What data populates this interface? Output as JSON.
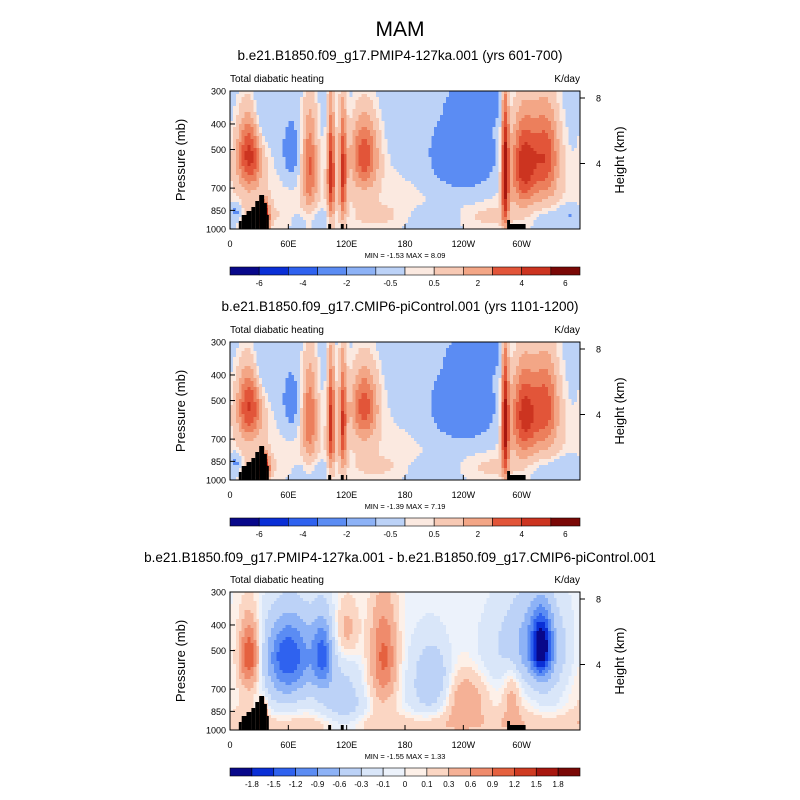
{
  "figure": {
    "title": "MAM"
  },
  "chart_data": [
    {
      "type": "heatmap",
      "title": "b.e21.B1850.f09_g17.PMIP4-127ka.001 (yrs 601-700)",
      "left_label": "Total diabatic heating",
      "right_label": "K/day",
      "ylabel": "Pressure (mb)",
      "ylabel_right": "Height (km)",
      "y_ticks": [
        "300",
        "400",
        "500",
        "700",
        "850",
        "1000"
      ],
      "y_right_ticks": [
        "8",
        "4"
      ],
      "x_ticks": [
        "0",
        "60E",
        "120E",
        "180",
        "120W",
        "60W"
      ],
      "stats": "MIN =  -1.53   MAX =   8.09",
      "colorbar_labels": [
        "-6",
        "-4",
        "-2",
        "-0.5",
        "0.5",
        "2",
        "4",
        "6"
      ],
      "colorbar_levels": 12,
      "field": "control",
      "scale": 1.05
    },
    {
      "type": "heatmap",
      "title": "b.e21.B1850.f09_g17.CMIP6-piControl.001 (yrs 1101-1200)",
      "left_label": "Total diabatic heating",
      "right_label": "K/day",
      "ylabel": "Pressure (mb)",
      "ylabel_right": "Height (km)",
      "y_ticks": [
        "300",
        "400",
        "500",
        "700",
        "850",
        "1000"
      ],
      "y_right_ticks": [
        "8",
        "4"
      ],
      "x_ticks": [
        "0",
        "60E",
        "120E",
        "180",
        "120W",
        "60W"
      ],
      "stats": "MIN =  -1.39   MAX =   7.19",
      "colorbar_labels": [
        "-6",
        "-4",
        "-2",
        "-0.5",
        "0.5",
        "2",
        "4",
        "6"
      ],
      "colorbar_levels": 12,
      "field": "control",
      "scale": 1.0
    },
    {
      "type": "heatmap",
      "title": "b.e21.B1850.f09_g17.PMIP4-127ka.001 - b.e21.B1850.f09_g17.CMIP6-piControl.001",
      "left_label": "Total diabatic heating",
      "right_label": "K/day",
      "ylabel": "Pressure (mb)",
      "ylabel_right": "Height (km)",
      "y_ticks": [
        "300",
        "400",
        "500",
        "700",
        "850",
        "1000"
      ],
      "y_right_ticks": [
        "8",
        "4"
      ],
      "x_ticks": [
        "0",
        "60E",
        "120E",
        "180",
        "120W",
        "60W"
      ],
      "stats": "MIN =  -1.55   MAX =   1.33",
      "colorbar_labels": [
        "-1.8",
        "-1.5",
        "-1.2",
        "-0.9",
        "-0.6",
        "-0.3",
        "-0.1",
        "0",
        "0.1",
        "0.3",
        "0.6",
        "0.9",
        "1.2",
        "1.5",
        "1.8"
      ],
      "colorbar_levels": 16,
      "field": "difference",
      "scale": 1.0
    }
  ],
  "colors": {
    "palette": [
      "#08088a",
      "#0a2fd6",
      "#2f62ef",
      "#5b8cf3",
      "#8db2f6",
      "#bcd2f7",
      "#e2ebf7",
      "#fbe9e0",
      "#f7c9b4",
      "#f3a686",
      "#ec7f5c",
      "#e25539",
      "#cc3420",
      "#a8170f",
      "#7a0806"
    ],
    "land": "#000000"
  }
}
